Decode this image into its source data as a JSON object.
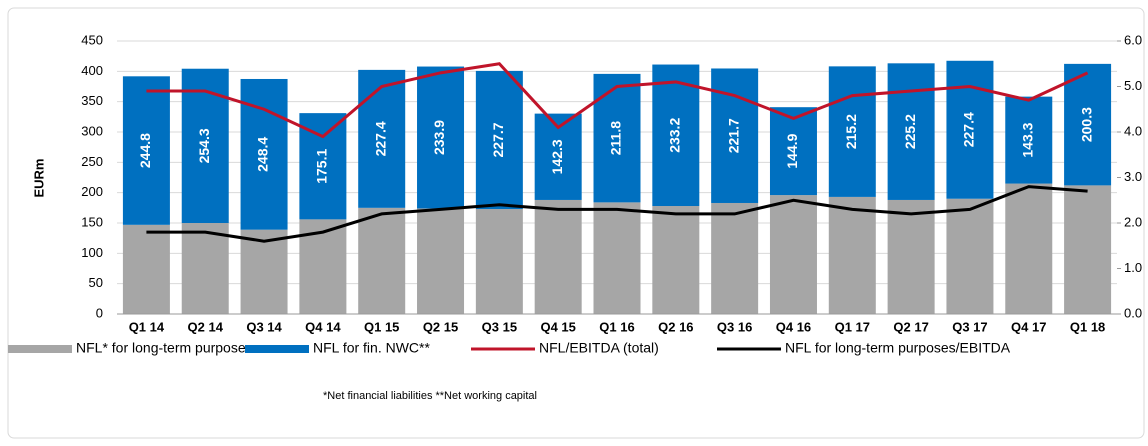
{
  "chart_data": {
    "type": "bar",
    "y_label": "EURm",
    "categories": [
      "Q1 14",
      "Q2 14",
      "Q3 14",
      "Q4 14",
      "Q1 15",
      "Q2 15",
      "Q3 15",
      "Q4 15",
      "Q1 16",
      "Q2 16",
      "Q3 16",
      "Q4 16",
      "Q1 17",
      "Q2 17",
      "Q3 17",
      "Q4 17",
      "Q1 18"
    ],
    "series": [
      {
        "name": "NFL* for long-term purposes",
        "color": "#a6a6a6",
        "kind": "bar",
        "values": [
          147,
          150,
          139,
          156,
          175,
          174,
          173,
          188,
          184,
          178,
          183,
          196,
          193,
          188,
          190,
          215,
          212
        ]
      },
      {
        "name": "NFL for fin. NWC**",
        "color": "#0070c0",
        "kind": "bar",
        "values": [
          244.8,
          254.3,
          248.4,
          175.1,
          227.4,
          233.9,
          227.7,
          142.3,
          211.8,
          233.2,
          221.7,
          144.9,
          215.2,
          225.2,
          227.4,
          143.3,
          200.3
        ]
      },
      {
        "name": "NFL/EBITDA (total)",
        "color": "#c0142a",
        "kind": "line",
        "axis": "y2",
        "values": [
          4.9,
          4.9,
          4.5,
          3.9,
          5.0,
          5.3,
          5.5,
          4.1,
          5.0,
          5.1,
          4.8,
          4.3,
          4.8,
          4.9,
          5.0,
          4.7,
          5.3
        ]
      },
      {
        "name": "NFL for long-term purposes/EBITDA",
        "color": "#000000",
        "kind": "line",
        "axis": "y2",
        "values": [
          1.8,
          1.8,
          1.6,
          1.8,
          2.2,
          2.3,
          2.4,
          2.3,
          2.3,
          2.2,
          2.2,
          2.5,
          2.3,
          2.2,
          2.3,
          2.8,
          2.7
        ]
      }
    ],
    "ylim": [
      0,
      450
    ],
    "yticks": [
      0,
      50,
      100,
      150,
      200,
      250,
      300,
      350,
      400,
      450
    ],
    "y2lim": [
      0,
      6
    ],
    "y2ticks": [
      {
        "value": 0,
        "label": "0.0"
      },
      {
        "value": 1,
        "label": "1.0"
      },
      {
        "value": 2,
        "label": "2.0"
      },
      {
        "value": 3,
        "label": "3.0"
      },
      {
        "value": 4,
        "label": "4.0"
      },
      {
        "value": 5,
        "label": "5.0"
      },
      {
        "value": 6,
        "label": "6.0"
      }
    ],
    "grid": true,
    "footnote": "*Net financial liabilities  **Net working capital"
  }
}
